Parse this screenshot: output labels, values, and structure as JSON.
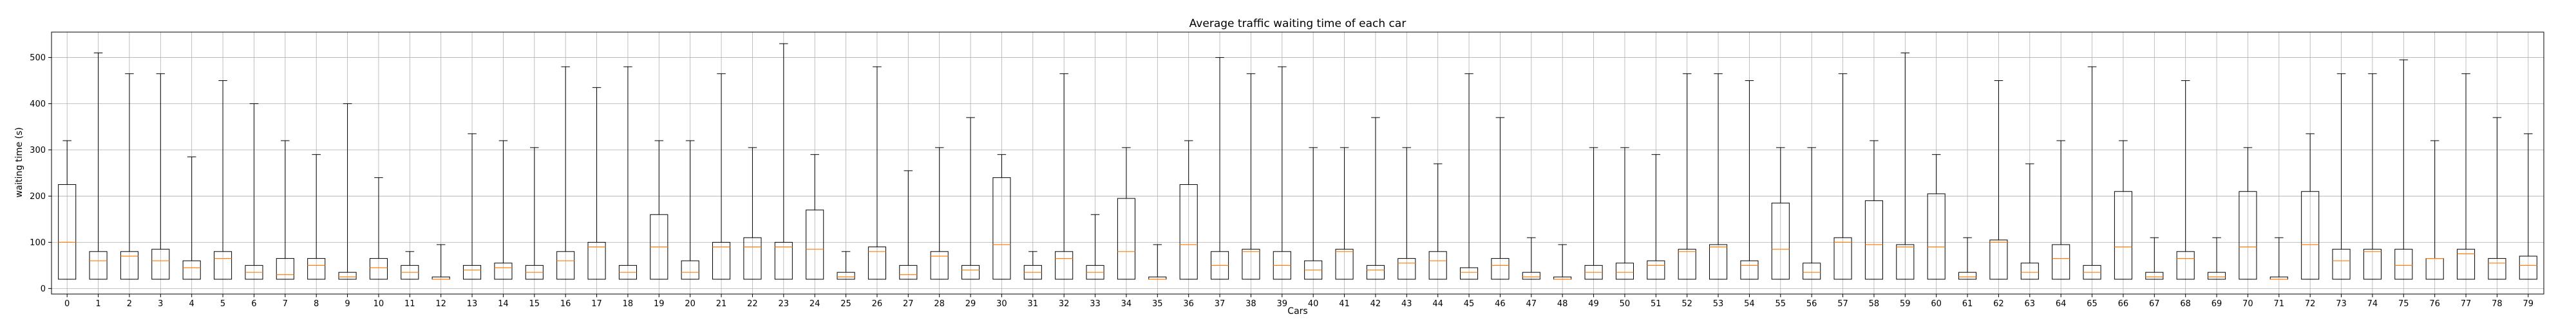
{
  "chart_data": {
    "type": "boxplot",
    "title": "Average traffic waiting time of each car",
    "xlabel": "Cars",
    "ylabel": "waiting time (s)",
    "ylim": [
      -12,
      555
    ],
    "yticks": [
      0,
      100,
      200,
      300,
      400,
      500
    ],
    "grid": true,
    "colors": {
      "box": "#000000",
      "median": "#ff7f0e",
      "grid": "#b0b0b0"
    },
    "categories": [
      "0",
      "1",
      "2",
      "3",
      "4",
      "5",
      "6",
      "7",
      "8",
      "9",
      "10",
      "11",
      "12",
      "13",
      "14",
      "15",
      "16",
      "17",
      "18",
      "19",
      "20",
      "21",
      "22",
      "23",
      "24",
      "25",
      "26",
      "27",
      "28",
      "29",
      "30",
      "31",
      "32",
      "33",
      "34",
      "35",
      "36",
      "37",
      "38",
      "39",
      "40",
      "41",
      "42",
      "43",
      "44",
      "45",
      "46",
      "47",
      "48",
      "49",
      "50",
      "51",
      "52",
      "53",
      "54",
      "55",
      "56",
      "57",
      "58",
      "59",
      "60",
      "61",
      "62",
      "63",
      "64",
      "65",
      "66",
      "67",
      "68",
      "69",
      "70",
      "71",
      "72",
      "73",
      "74",
      "75",
      "76",
      "77",
      "78",
      "79"
    ],
    "boxes": [
      {
        "min": 20,
        "q1": 20,
        "median": 100,
        "q3": 225,
        "max": 320
      },
      {
        "min": 20,
        "q1": 20,
        "median": 60,
        "q3": 80,
        "max": 510
      },
      {
        "min": 20,
        "q1": 20,
        "median": 70,
        "q3": 80,
        "max": 465
      },
      {
        "min": 20,
        "q1": 20,
        "median": 60,
        "q3": 85,
        "max": 465
      },
      {
        "min": 20,
        "q1": 20,
        "median": 45,
        "q3": 60,
        "max": 285
      },
      {
        "min": 20,
        "q1": 20,
        "median": 65,
        "q3": 80,
        "max": 450
      },
      {
        "min": 20,
        "q1": 20,
        "median": 35,
        "q3": 50,
        "max": 400
      },
      {
        "min": 20,
        "q1": 20,
        "median": 30,
        "q3": 65,
        "max": 320
      },
      {
        "min": 20,
        "q1": 20,
        "median": 50,
        "q3": 65,
        "max": 290
      },
      {
        "min": 20,
        "q1": 20,
        "median": 25,
        "q3": 35,
        "max": 400
      },
      {
        "min": 20,
        "q1": 20,
        "median": 45,
        "q3": 65,
        "max": 240
      },
      {
        "min": 20,
        "q1": 20,
        "median": 35,
        "q3": 50,
        "max": 80
      },
      {
        "min": 20,
        "q1": 20,
        "median": 20,
        "q3": 25,
        "max": 95
      },
      {
        "min": 20,
        "q1": 20,
        "median": 40,
        "q3": 50,
        "max": 335
      },
      {
        "min": 20,
        "q1": 20,
        "median": 45,
        "q3": 55,
        "max": 320
      },
      {
        "min": 20,
        "q1": 20,
        "median": 35,
        "q3": 50,
        "max": 305
      },
      {
        "min": 20,
        "q1": 20,
        "median": 60,
        "q3": 80,
        "max": 480
      },
      {
        "min": 20,
        "q1": 20,
        "median": 90,
        "q3": 100,
        "max": 435
      },
      {
        "min": 20,
        "q1": 20,
        "median": 35,
        "q3": 50,
        "max": 480
      },
      {
        "min": 20,
        "q1": 20,
        "median": 90,
        "q3": 160,
        "max": 320
      },
      {
        "min": 20,
        "q1": 20,
        "median": 35,
        "q3": 60,
        "max": 320
      },
      {
        "min": 20,
        "q1": 20,
        "median": 90,
        "q3": 100,
        "max": 465
      },
      {
        "min": 20,
        "q1": 20,
        "median": 90,
        "q3": 110,
        "max": 305
      },
      {
        "min": 20,
        "q1": 20,
        "median": 90,
        "q3": 100,
        "max": 530
      },
      {
        "min": 20,
        "q1": 20,
        "median": 85,
        "q3": 170,
        "max": 290
      },
      {
        "min": 20,
        "q1": 20,
        "median": 25,
        "q3": 35,
        "max": 80
      },
      {
        "min": 20,
        "q1": 20,
        "median": 80,
        "q3": 90,
        "max": 480
      },
      {
        "min": 20,
        "q1": 20,
        "median": 30,
        "q3": 50,
        "max": 255
      },
      {
        "min": 20,
        "q1": 20,
        "median": 70,
        "q3": 80,
        "max": 305
      },
      {
        "min": 20,
        "q1": 20,
        "median": 40,
        "q3": 50,
        "max": 370
      },
      {
        "min": 20,
        "q1": 20,
        "median": 95,
        "q3": 240,
        "max": 290
      },
      {
        "min": 20,
        "q1": 20,
        "median": 35,
        "q3": 50,
        "max": 80
      },
      {
        "min": 20,
        "q1": 20,
        "median": 65,
        "q3": 80,
        "max": 465
      },
      {
        "min": 20,
        "q1": 20,
        "median": 35,
        "q3": 50,
        "max": 160
      },
      {
        "min": 20,
        "q1": 20,
        "median": 80,
        "q3": 195,
        "max": 305
      },
      {
        "min": 20,
        "q1": 20,
        "median": 20,
        "q3": 25,
        "max": 95
      },
      {
        "min": 20,
        "q1": 20,
        "median": 95,
        "q3": 225,
        "max": 320
      },
      {
        "min": 20,
        "q1": 20,
        "median": 50,
        "q3": 80,
        "max": 500
      },
      {
        "min": 20,
        "q1": 20,
        "median": 80,
        "q3": 85,
        "max": 465
      },
      {
        "min": 20,
        "q1": 20,
        "median": 50,
        "q3": 80,
        "max": 480
      },
      {
        "min": 20,
        "q1": 20,
        "median": 40,
        "q3": 60,
        "max": 305
      },
      {
        "min": 20,
        "q1": 20,
        "median": 80,
        "q3": 85,
        "max": 305
      },
      {
        "min": 20,
        "q1": 20,
        "median": 40,
        "q3": 50,
        "max": 370
      },
      {
        "min": 20,
        "q1": 20,
        "median": 55,
        "q3": 65,
        "max": 305
      },
      {
        "min": 20,
        "q1": 20,
        "median": 60,
        "q3": 80,
        "max": 270
      },
      {
        "min": 20,
        "q1": 20,
        "median": 35,
        "q3": 45,
        "max": 465
      },
      {
        "min": 20,
        "q1": 20,
        "median": 50,
        "q3": 65,
        "max": 370
      },
      {
        "min": 20,
        "q1": 20,
        "median": 25,
        "q3": 35,
        "max": 110
      },
      {
        "min": 20,
        "q1": 20,
        "median": 20,
        "q3": 25,
        "max": 95
      },
      {
        "min": 20,
        "q1": 20,
        "median": 35,
        "q3": 50,
        "max": 305
      },
      {
        "min": 20,
        "q1": 20,
        "median": 35,
        "q3": 55,
        "max": 305
      },
      {
        "min": 20,
        "q1": 20,
        "median": 50,
        "q3": 60,
        "max": 290
      },
      {
        "min": 20,
        "q1": 20,
        "median": 80,
        "q3": 85,
        "max": 465
      },
      {
        "min": 20,
        "q1": 20,
        "median": 90,
        "q3": 95,
        "max": 465
      },
      {
        "min": 20,
        "q1": 20,
        "median": 50,
        "q3": 60,
        "max": 450
      },
      {
        "min": 20,
        "q1": 20,
        "median": 85,
        "q3": 185,
        "max": 305
      },
      {
        "min": 20,
        "q1": 20,
        "median": 35,
        "q3": 55,
        "max": 305
      },
      {
        "min": 20,
        "q1": 20,
        "median": 100,
        "q3": 110,
        "max": 465
      },
      {
        "min": 20,
        "q1": 20,
        "median": 95,
        "q3": 190,
        "max": 320
      },
      {
        "min": 20,
        "q1": 20,
        "median": 90,
        "q3": 95,
        "max": 510
      },
      {
        "min": 20,
        "q1": 20,
        "median": 90,
        "q3": 205,
        "max": 290
      },
      {
        "min": 20,
        "q1": 20,
        "median": 25,
        "q3": 35,
        "max": 110
      },
      {
        "min": 20,
        "q1": 20,
        "median": 100,
        "q3": 105,
        "max": 450
      },
      {
        "min": 20,
        "q1": 20,
        "median": 35,
        "q3": 55,
        "max": 270
      },
      {
        "min": 20,
        "q1": 20,
        "median": 65,
        "q3": 95,
        "max": 320
      },
      {
        "min": 20,
        "q1": 20,
        "median": 35,
        "q3": 50,
        "max": 480
      },
      {
        "min": 20,
        "q1": 20,
        "median": 90,
        "q3": 210,
        "max": 320
      },
      {
        "min": 20,
        "q1": 20,
        "median": 25,
        "q3": 35,
        "max": 110
      },
      {
        "min": 20,
        "q1": 20,
        "median": 65,
        "q3": 80,
        "max": 450
      },
      {
        "min": 20,
        "q1": 20,
        "median": 25,
        "q3": 35,
        "max": 110
      },
      {
        "min": 20,
        "q1": 20,
        "median": 90,
        "q3": 210,
        "max": 305
      },
      {
        "min": 20,
        "q1": 20,
        "median": 20,
        "q3": 25,
        "max": 110
      },
      {
        "min": 20,
        "q1": 20,
        "median": 95,
        "q3": 210,
        "max": 335
      },
      {
        "min": 20,
        "q1": 20,
        "median": 60,
        "q3": 85,
        "max": 465
      },
      {
        "min": 20,
        "q1": 20,
        "median": 80,
        "q3": 85,
        "max": 465
      },
      {
        "min": 20,
        "q1": 20,
        "median": 50,
        "q3": 85,
        "max": 495
      },
      {
        "min": 20,
        "q1": 20,
        "median": 65,
        "q3": 65,
        "max": 320
      },
      {
        "min": 20,
        "q1": 20,
        "median": 75,
        "q3": 85,
        "max": 465
      },
      {
        "min": 20,
        "q1": 20,
        "median": 55,
        "q3": 65,
        "max": 370
      },
      {
        "min": 20,
        "q1": 20,
        "median": 50,
        "q3": 70,
        "max": 335
      }
    ]
  }
}
